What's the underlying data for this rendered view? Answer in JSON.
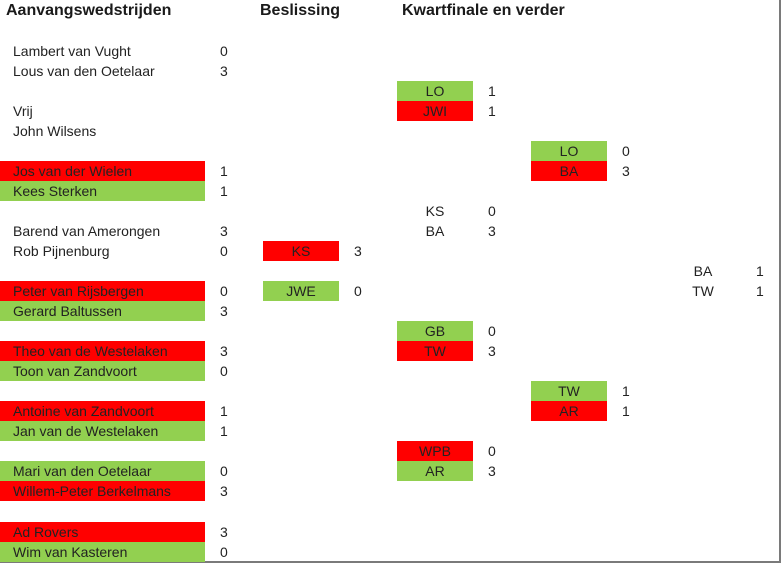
{
  "headers": {
    "col1": "Aanvangswedstrijden",
    "col2": "Beslissing",
    "col3": "Kwartfinale en verder"
  },
  "colors": {
    "red": "#ff0000",
    "green": "#92d050",
    "border": "#7a7a7a"
  },
  "first_round": [
    {
      "name": "Lambert van Vught",
      "score": "0",
      "fill": "none"
    },
    {
      "name": "Lous van den Oetelaar",
      "score": "3",
      "fill": "none"
    },
    {
      "name": "Vrij",
      "score": "",
      "fill": "none"
    },
    {
      "name": "John Wilsens",
      "score": "",
      "fill": "none"
    },
    {
      "name": "Jos van der Wielen",
      "score": "1",
      "fill": "red"
    },
    {
      "name": "Kees Sterken",
      "score": "1",
      "fill": "green"
    },
    {
      "name": "Barend van Amerongen",
      "score": "3",
      "fill": "none"
    },
    {
      "name": "Rob Pijnenburg",
      "score": "0",
      "fill": "none"
    },
    {
      "name": "Peter van Rijsbergen",
      "score": "0",
      "fill": "red"
    },
    {
      "name": "Gerard Baltussen",
      "score": "3",
      "fill": "green"
    },
    {
      "name": "Theo van de Westelaken",
      "score": "3",
      "fill": "red"
    },
    {
      "name": "Toon van Zandvoort",
      "score": "0",
      "fill": "green"
    },
    {
      "name": "Antoine van Zandvoort",
      "score": "1",
      "fill": "red"
    },
    {
      "name": "Jan van de Westelaken",
      "score": "1",
      "fill": "green"
    },
    {
      "name": "Mari van den Oetelaar",
      "score": "0",
      "fill": "green"
    },
    {
      "name": "Willem-Peter Berkelmans",
      "score": "3",
      "fill": "red"
    },
    {
      "name": "Ad Rovers",
      "score": "3",
      "fill": "red"
    },
    {
      "name": "Wim van Kasteren",
      "score": "0",
      "fill": "green"
    }
  ],
  "decision": [
    {
      "code": "KS",
      "score": "3",
      "fill": "red"
    },
    {
      "code": "JWE",
      "score": "0",
      "fill": "green"
    }
  ],
  "quarterfinal": [
    {
      "code": "LO",
      "score": "1",
      "fill": "green"
    },
    {
      "code": "JWI",
      "score": "1",
      "fill": "red"
    },
    {
      "code": "KS",
      "score": "0",
      "fill": "none"
    },
    {
      "code": "BA",
      "score": "3",
      "fill": "none"
    },
    {
      "code": "GB",
      "score": "0",
      "fill": "green"
    },
    {
      "code": "TW",
      "score": "3",
      "fill": "red"
    },
    {
      "code": "WPB",
      "score": "0",
      "fill": "red"
    },
    {
      "code": "AR",
      "score": "3",
      "fill": "green"
    }
  ],
  "semifinal": [
    {
      "code": "LO",
      "score": "0",
      "fill": "green"
    },
    {
      "code": "BA",
      "score": "3",
      "fill": "red"
    },
    {
      "code": "TW",
      "score": "1",
      "fill": "green"
    },
    {
      "code": "AR",
      "score": "1",
      "fill": "red"
    }
  ],
  "final": [
    {
      "code": "BA",
      "score": "1",
      "fill": "none"
    },
    {
      "code": "TW",
      "score": "1",
      "fill": "none"
    }
  ]
}
